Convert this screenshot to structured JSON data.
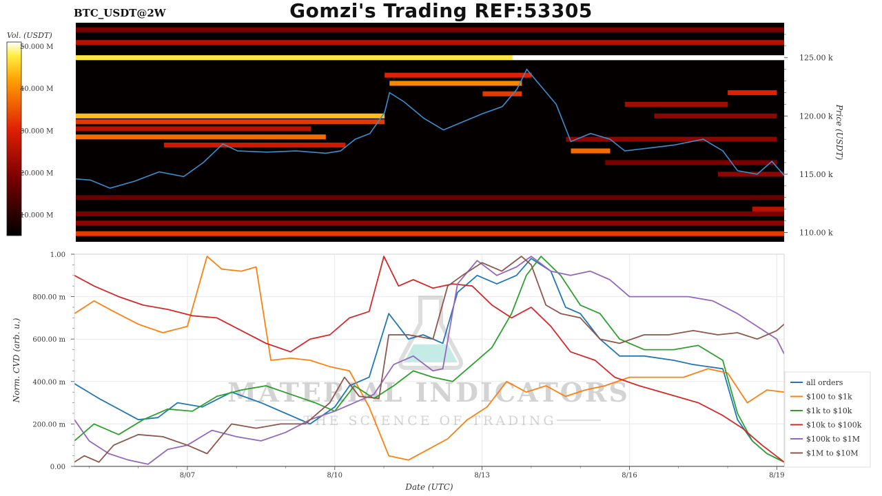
{
  "header": {
    "title": "Gomzi's Trading REF:53305",
    "pair": "BTC_USDT@2W"
  },
  "watermark": {
    "line1": "MATERIAL INDICATORS",
    "line2": "THE SCIENCE OF TRADING"
  },
  "colorbar": {
    "label": "Vol. (USDT)",
    "ticks": [
      {
        "value": 10,
        "label": "10.000 M"
      },
      {
        "value": 20,
        "label": "20.000 M"
      },
      {
        "value": 30,
        "label": "30.000 M"
      },
      {
        "value": 40,
        "label": "40.000 M"
      },
      {
        "value": 50,
        "label": "50.000 M"
      }
    ],
    "range": [
      5,
      51
    ]
  },
  "chart_data": [
    {
      "type": "heatmap",
      "title": "BTC_USDT@2W",
      "ylabel": "Price (USDT)",
      "ylim": [
        109.2,
        128.0
      ],
      "xlim": [
        4.7,
        19.15
      ],
      "yticks": [
        {
          "value": 110,
          "label": "110.00 k"
        },
        {
          "value": 115,
          "label": "115.00 k"
        },
        {
          "value": 120,
          "label": "120.00 k"
        },
        {
          "value": 125,
          "label": "125.00 k"
        }
      ],
      "colors": {
        "background": "#050000",
        "price_line": "#3a8fd0"
      },
      "bands": [
        {
          "price": 125.0,
          "start": 4.7,
          "end": 13.6,
          "intensity": 0.92
        },
        {
          "price": 125.0,
          "start": 13.6,
          "end": 19.15,
          "intensity": 1.0
        },
        {
          "price": 126.3,
          "start": 4.7,
          "end": 19.15,
          "intensity": 0.45
        },
        {
          "price": 127.4,
          "start": 4.7,
          "end": 19.15,
          "intensity": 0.3
        },
        {
          "price": 123.5,
          "start": 11.0,
          "end": 14.0,
          "intensity": 0.55
        },
        {
          "price": 122.8,
          "start": 11.1,
          "end": 13.8,
          "intensity": 0.75
        },
        {
          "price": 121.9,
          "start": 13.0,
          "end": 13.8,
          "intensity": 0.6
        },
        {
          "price": 120.0,
          "start": 4.7,
          "end": 11.0,
          "intensity": 0.85
        },
        {
          "price": 119.5,
          "start": 4.7,
          "end": 11.0,
          "intensity": 0.6
        },
        {
          "price": 118.9,
          "start": 4.7,
          "end": 9.5,
          "intensity": 0.45
        },
        {
          "price": 118.2,
          "start": 4.7,
          "end": 9.8,
          "intensity": 0.7
        },
        {
          "price": 117.5,
          "start": 6.5,
          "end": 10.2,
          "intensity": 0.5
        },
        {
          "price": 122.0,
          "start": 18.0,
          "end": 19.0,
          "intensity": 0.55
        },
        {
          "price": 121.0,
          "start": 15.9,
          "end": 18.0,
          "intensity": 0.4
        },
        {
          "price": 120.0,
          "start": 16.5,
          "end": 19.0,
          "intensity": 0.35
        },
        {
          "price": 117.0,
          "start": 14.8,
          "end": 15.6,
          "intensity": 0.7
        },
        {
          "price": 118.0,
          "start": 14.7,
          "end": 19.0,
          "intensity": 0.35
        },
        {
          "price": 116.0,
          "start": 15.5,
          "end": 19.0,
          "intensity": 0.3
        },
        {
          "price": 115.0,
          "start": 17.8,
          "end": 19.15,
          "intensity": 0.35
        },
        {
          "price": 113.0,
          "start": 4.7,
          "end": 19.15,
          "intensity": 0.25
        },
        {
          "price": 112.0,
          "start": 18.5,
          "end": 19.15,
          "intensity": 0.45
        },
        {
          "price": 111.6,
          "start": 4.7,
          "end": 19.15,
          "intensity": 0.3
        },
        {
          "price": 110.8,
          "start": 4.7,
          "end": 19.15,
          "intensity": 0.35
        },
        {
          "price": 109.9,
          "start": 4.7,
          "end": 19.15,
          "intensity": 0.6
        }
      ],
      "price_series": {
        "x": [
          4.7,
          5.0,
          5.4,
          5.9,
          6.4,
          6.9,
          7.3,
          7.7,
          8.0,
          8.6,
          9.2,
          9.8,
          10.1,
          10.4,
          10.7,
          11.0,
          11.1,
          11.4,
          11.8,
          12.2,
          12.6,
          13.0,
          13.4,
          13.7,
          13.9,
          14.2,
          14.5,
          14.8,
          15.2,
          15.6,
          15.9,
          16.3,
          16.9,
          17.5,
          17.9,
          18.2,
          18.6,
          18.9,
          19.15
        ],
        "y": [
          114.6,
          114.5,
          113.8,
          114.4,
          115.2,
          114.8,
          116.0,
          117.6,
          117.0,
          116.9,
          117.0,
          116.8,
          117.0,
          118.0,
          118.5,
          120.3,
          122.0,
          121.2,
          119.8,
          118.8,
          119.5,
          120.2,
          120.8,
          122.3,
          124.0,
          122.5,
          121.0,
          117.8,
          118.5,
          118.0,
          117.0,
          117.2,
          117.5,
          118.0,
          117.0,
          115.3,
          115.0,
          116.1,
          114.9
        ]
      }
    },
    {
      "type": "line",
      "xlabel": "Date (UTC)",
      "ylabel": "Norm. CVD (arb. u.)",
      "xlim": [
        4.7,
        19.15
      ],
      "ylim": [
        0,
        1
      ],
      "xticks": [
        {
          "value": 7,
          "label": "8/07"
        },
        {
          "value": 10,
          "label": "8/10"
        },
        {
          "value": 13,
          "label": "8/13"
        },
        {
          "value": 16,
          "label": "8/16"
        },
        {
          "value": 19,
          "label": "8/19"
        }
      ],
      "yticks": [
        {
          "value": 0.0,
          "label": "0.00"
        },
        {
          "value": 0.2,
          "label": "200.00 m"
        },
        {
          "value": 0.4,
          "label": "400.00 m"
        },
        {
          "value": 0.6,
          "label": "600.00 m"
        },
        {
          "value": 0.8,
          "label": "800.00 m"
        },
        {
          "value": 1.0,
          "label": "1.00"
        }
      ],
      "grid": true,
      "legend": "right",
      "series": [
        {
          "name": "all orders",
          "color": "#1f77b4",
          "x": [
            4.7,
            5.2,
            5.6,
            6.0,
            6.4,
            6.8,
            7.3,
            7.9,
            8.5,
            9.0,
            9.5,
            10.0,
            10.3,
            10.7,
            11.1,
            11.5,
            11.8,
            12.2,
            12.5,
            12.9,
            13.3,
            13.7,
            14.0,
            14.4,
            14.7,
            15.0,
            15.4,
            15.8,
            16.3,
            16.9,
            17.3,
            17.9,
            18.2,
            18.5,
            18.8,
            19.15
          ],
          "y": [
            0.39,
            0.32,
            0.27,
            0.22,
            0.23,
            0.3,
            0.28,
            0.35,
            0.3,
            0.25,
            0.2,
            0.28,
            0.38,
            0.42,
            0.72,
            0.6,
            0.62,
            0.58,
            0.82,
            0.9,
            0.86,
            0.9,
            0.98,
            0.92,
            0.75,
            0.72,
            0.6,
            0.52,
            0.52,
            0.5,
            0.48,
            0.46,
            0.22,
            0.12,
            0.06,
            0.02
          ]
        },
        {
          "name": "$100 to $1k",
          "color": "#ff7f0e",
          "x": [
            4.7,
            5.1,
            5.5,
            6.0,
            6.5,
            7.0,
            7.4,
            7.7,
            8.1,
            8.4,
            8.7,
            9.1,
            9.5,
            9.9,
            10.3,
            10.7,
            11.1,
            11.5,
            11.9,
            12.3,
            12.7,
            13.1,
            13.5,
            13.9,
            14.3,
            14.7,
            15.1,
            15.5,
            16.0,
            16.6,
            17.1,
            17.6,
            18.0,
            18.4,
            18.8,
            19.15
          ],
          "y": [
            0.72,
            0.78,
            0.73,
            0.67,
            0.63,
            0.66,
            0.99,
            0.93,
            0.92,
            0.94,
            0.5,
            0.51,
            0.5,
            0.47,
            0.45,
            0.28,
            0.05,
            0.03,
            0.08,
            0.13,
            0.22,
            0.28,
            0.4,
            0.35,
            0.38,
            0.33,
            0.36,
            0.38,
            0.42,
            0.42,
            0.42,
            0.46,
            0.44,
            0.3,
            0.36,
            0.35
          ]
        },
        {
          "name": "$1k to $10k",
          "color": "#2ca02c",
          "x": [
            4.7,
            5.1,
            5.6,
            6.1,
            6.6,
            7.1,
            7.6,
            8.1,
            8.6,
            9.1,
            9.6,
            10.0,
            10.4,
            10.8,
            11.2,
            11.6,
            12.0,
            12.4,
            12.8,
            13.2,
            13.6,
            13.9,
            14.2,
            14.6,
            15.0,
            15.4,
            15.8,
            16.3,
            16.9,
            17.4,
            17.9,
            18.2,
            18.5,
            18.8,
            19.15
          ],
          "y": [
            0.12,
            0.2,
            0.15,
            0.22,
            0.27,
            0.26,
            0.33,
            0.36,
            0.38,
            0.34,
            0.3,
            0.26,
            0.38,
            0.32,
            0.38,
            0.45,
            0.42,
            0.4,
            0.48,
            0.56,
            0.72,
            0.9,
            0.99,
            0.9,
            0.76,
            0.72,
            0.6,
            0.55,
            0.55,
            0.57,
            0.5,
            0.25,
            0.12,
            0.06,
            0.02
          ]
        },
        {
          "name": "$10k to $100k",
          "color": "#d62728",
          "x": [
            4.7,
            5.1,
            5.6,
            6.1,
            6.6,
            7.1,
            7.6,
            8.1,
            8.6,
            9.1,
            9.5,
            9.9,
            10.3,
            10.7,
            11.0,
            11.3,
            11.6,
            12.0,
            12.4,
            12.8,
            13.2,
            13.6,
            14.0,
            14.4,
            14.8,
            15.3,
            15.7,
            16.2,
            16.8,
            17.4,
            17.9,
            18.3,
            18.7,
            19.15
          ],
          "y": [
            0.9,
            0.85,
            0.8,
            0.76,
            0.74,
            0.71,
            0.7,
            0.64,
            0.58,
            0.54,
            0.6,
            0.62,
            0.7,
            0.73,
            0.99,
            0.85,
            0.88,
            0.84,
            0.86,
            0.85,
            0.76,
            0.7,
            0.75,
            0.66,
            0.54,
            0.5,
            0.42,
            0.38,
            0.34,
            0.3,
            0.24,
            0.18,
            0.1,
            0.02
          ]
        },
        {
          "name": "$100k to $1M",
          "color": "#9467bd",
          "x": [
            4.7,
            5.0,
            5.4,
            5.8,
            6.2,
            6.6,
            7.0,
            7.5,
            8.0,
            8.5,
            9.0,
            9.5,
            10.0,
            10.4,
            10.8,
            11.2,
            11.6,
            12.0,
            12.2,
            12.5,
            12.9,
            13.3,
            13.7,
            14.0,
            14.4,
            14.8,
            15.2,
            15.6,
            16.0,
            16.6,
            17.2,
            17.7,
            18.2,
            18.6,
            19.0,
            19.15
          ],
          "y": [
            0.22,
            0.12,
            0.06,
            0.03,
            0.01,
            0.08,
            0.1,
            0.17,
            0.14,
            0.12,
            0.16,
            0.22,
            0.26,
            0.3,
            0.34,
            0.48,
            0.52,
            0.45,
            0.46,
            0.86,
            0.97,
            0.9,
            0.94,
            0.99,
            0.92,
            0.9,
            0.92,
            0.88,
            0.8,
            0.8,
            0.8,
            0.78,
            0.72,
            0.66,
            0.6,
            0.53
          ]
        },
        {
          "name": "$1M to $10M",
          "color": "#8c564b",
          "x": [
            4.7,
            4.9,
            5.2,
            5.5,
            6.0,
            6.5,
            7.0,
            7.4,
            7.9,
            8.4,
            8.9,
            9.4,
            9.9,
            10.2,
            10.5,
            10.9,
            11.1,
            11.5,
            12.0,
            12.3,
            12.6,
            13.0,
            13.4,
            13.8,
            14.0,
            14.3,
            14.6,
            15.0,
            15.4,
            15.8,
            16.3,
            16.8,
            17.3,
            17.8,
            18.2,
            18.6,
            19.0,
            19.15
          ],
          "y": [
            0.02,
            0.05,
            0.02,
            0.1,
            0.15,
            0.14,
            0.1,
            0.06,
            0.2,
            0.18,
            0.2,
            0.2,
            0.3,
            0.42,
            0.33,
            0.32,
            0.62,
            0.62,
            0.6,
            0.85,
            0.9,
            0.96,
            0.92,
            0.99,
            0.95,
            0.76,
            0.72,
            0.7,
            0.6,
            0.58,
            0.62,
            0.62,
            0.64,
            0.62,
            0.63,
            0.6,
            0.64,
            0.67
          ]
        }
      ]
    }
  ]
}
